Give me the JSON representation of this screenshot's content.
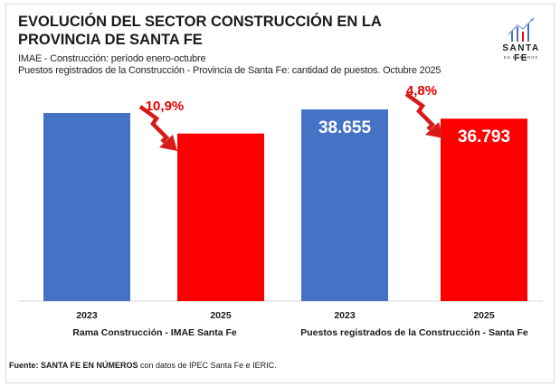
{
  "title": "EVOLUCIÓN DEL SECTOR CONSTRUCCIÓN EN LA PROVINCIA DE SANTA FE",
  "subtitle_1": "IMAE - Construcción: período enero-octubre",
  "subtitle_2": "Puestos registrados de la Construcción - Provincia de Santa Fe: cantidad de puestos. Octubre 2025",
  "logo": {
    "name": "SANTA FE",
    "tagline": "EN NÚMEROS",
    "icon": "chart-trend-icon"
  },
  "source": {
    "label": "Fuente: SANTA FE EN NÚMEROS",
    "text": " con datos de IPEC Santa Fe e IERIC."
  },
  "colors": {
    "bar_2023": "#4472c4",
    "bar_2025": "#ff0000",
    "change_text": "#e60000",
    "arrow": "#d91a1a"
  },
  "chart_data": [
    {
      "type": "bar",
      "group_label": "Rama Construcción  - IMAE Santa  Fe",
      "categories": [
        "2023",
        "2025"
      ],
      "values": [
        100,
        89.1
      ],
      "value_labels": [
        "",
        ""
      ],
      "change_label": "10,9%",
      "change_direction": "down"
    },
    {
      "type": "bar",
      "group_label": "Puestos registrados de la Construcción - Santa Fe",
      "categories": [
        "2023",
        "2025"
      ],
      "values": [
        38655,
        36793
      ],
      "value_labels": [
        "38.655",
        "36.793"
      ],
      "change_label": "4,8%",
      "change_direction": "down"
    }
  ]
}
